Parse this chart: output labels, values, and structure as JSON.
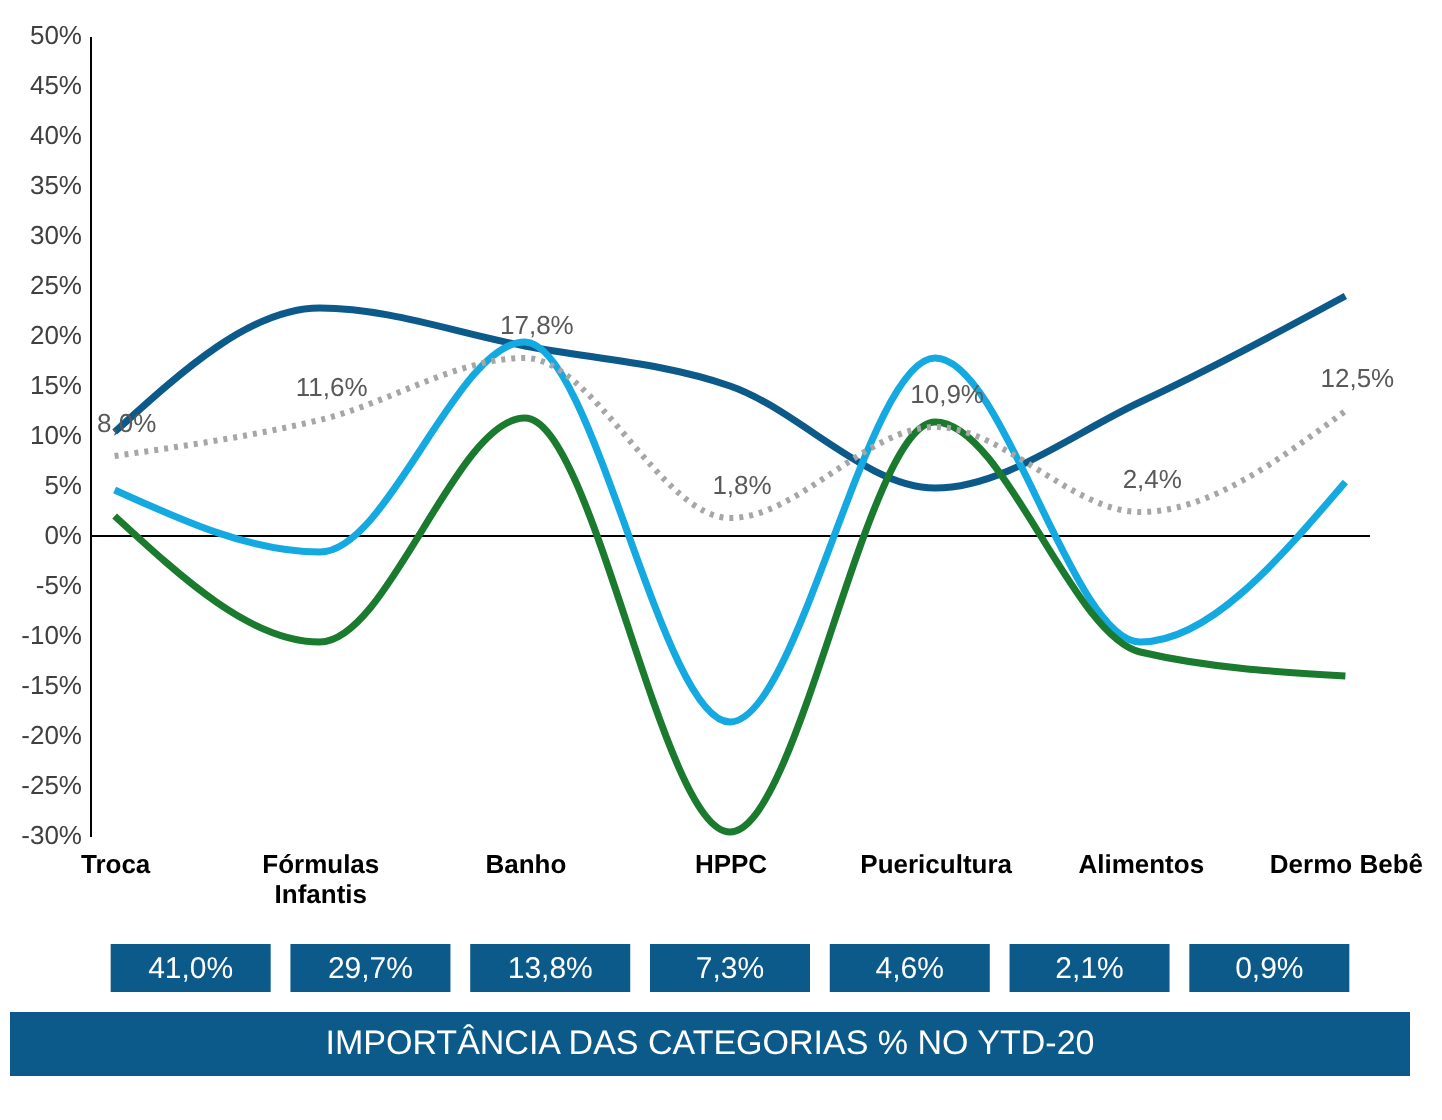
{
  "chart_data": {
    "type": "line",
    "categories": [
      "Troca",
      "Fórmulas Infantis",
      "Banho",
      "HPPC",
      "Puericultura",
      "Alimentos",
      "Dermo Bebê"
    ],
    "series": [
      {
        "color": "#0b5a8a",
        "values": [
          10.4,
          22.8,
          19.0,
          15.0,
          4.8,
          13.4,
          24.0
        ]
      },
      {
        "color": "#14a9e0",
        "values": [
          4.6,
          -1.6,
          19.4,
          -18.6,
          17.8,
          -10.6,
          5.4
        ]
      },
      {
        "color": "#1a7a2e",
        "values": [
          2.0,
          -10.6,
          11.8,
          -29.6,
          11.4,
          -11.6,
          -14.0
        ]
      },
      {
        "color": "#a6a6a6",
        "line_style": "dotted",
        "values": [
          8.0,
          11.6,
          17.8,
          1.8,
          10.9,
          2.4,
          12.5
        ],
        "value_labels": [
          "8,0%",
          "11,6%",
          "17,8%",
          "1,8%",
          "10,9%",
          "2,4%",
          "12,5%"
        ]
      }
    ],
    "ylim": [
      -30,
      50
    ],
    "yticks": [
      {
        "value": -30,
        "label": "-30%"
      },
      {
        "value": -25,
        "label": "-25%"
      },
      {
        "value": -20,
        "label": "-20%"
      },
      {
        "value": -15,
        "label": "-15%"
      },
      {
        "value": -10,
        "label": "-10%"
      },
      {
        "value": -5,
        "label": "-5%"
      },
      {
        "value": 0,
        "label": "0%"
      },
      {
        "value": 5,
        "label": "5%"
      },
      {
        "value": 10,
        "label": "10%"
      },
      {
        "value": 15,
        "label": "15%"
      },
      {
        "value": 20,
        "label": "20%"
      },
      {
        "value": 25,
        "label": "25%"
      },
      {
        "value": 30,
        "label": "30%"
      },
      {
        "value": 35,
        "label": "35%"
      },
      {
        "value": 40,
        "label": "40%"
      },
      {
        "value": 45,
        "label": "45%"
      },
      {
        "value": 50,
        "label": "50%"
      }
    ],
    "ref_lines": [
      {
        "axis": "y",
        "value": 0,
        "color": "#000000"
      }
    ],
    "grid": false,
    "marker": "none",
    "line_style": "solid",
    "annotations": [
      "41,0%",
      "29,7%",
      "13,8%",
      "7,3%",
      "4,6%",
      "2,1%",
      "0,9%",
      "IMPORTÂNCIA DAS CATEGORIAS % NO YTD-20"
    ]
  }
}
